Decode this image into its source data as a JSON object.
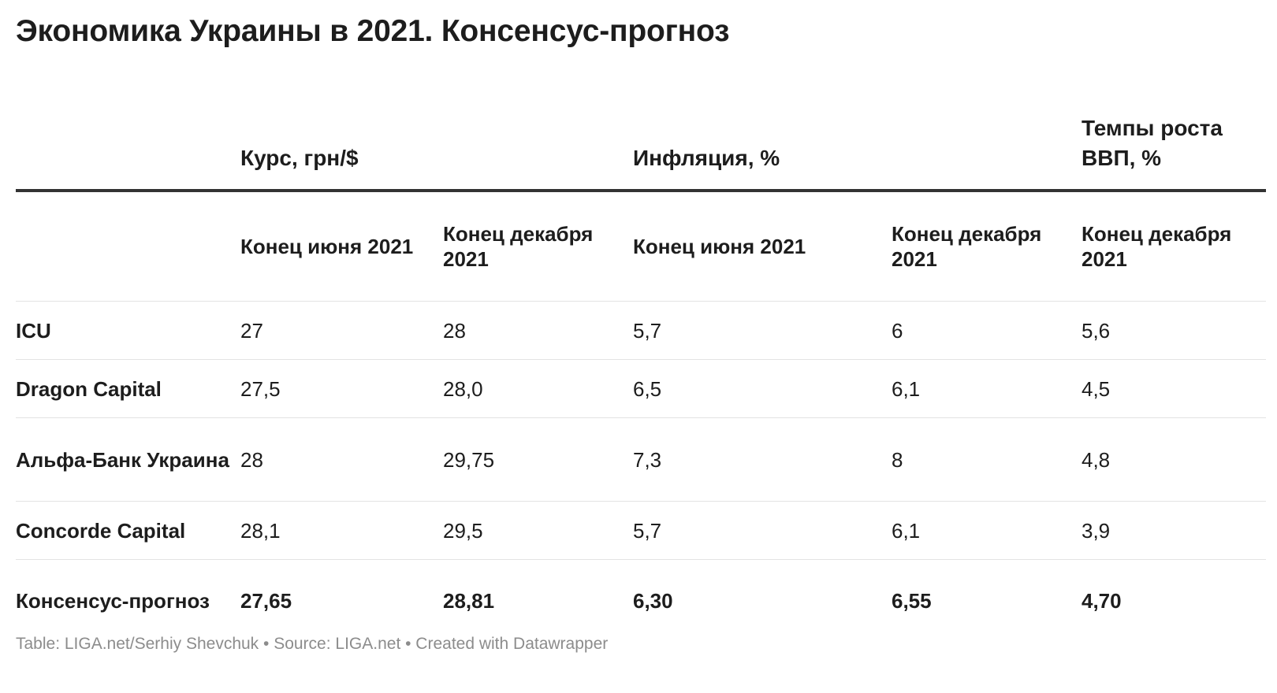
{
  "title": "Экономика Украины в 2021. Консенсус-прогноз",
  "table": {
    "groups": [
      {
        "label": "",
        "colspan": 1
      },
      {
        "label": "Курс, грн/$",
        "colspan": 2
      },
      {
        "label": "Инфляция, %",
        "colspan": 2
      },
      {
        "label": "Темпы роста ВВП, %",
        "colspan": 1
      }
    ],
    "columns": [
      "",
      "Конец июня 2021",
      "Конец декабря 2021",
      "Конец июня 2021",
      "Конец декабря 2021",
      "Конец декабря 2021"
    ],
    "rows": [
      [
        "ICU",
        "27",
        "28",
        "5,7",
        "6",
        "5,6"
      ],
      [
        "Dragon Capital",
        "27,5",
        "28,0",
        "6,5",
        "6,1",
        "4,5"
      ],
      [
        "Альфа-Банк Украина",
        "28",
        "29,75",
        "7,3",
        "8",
        "4,8"
      ],
      [
        "Concorde Capital",
        "28,1",
        "29,5",
        "5,7",
        "6,1",
        "3,9"
      ]
    ],
    "total": [
      "Консенсус-прогноз",
      "27,65",
      "28,81",
      "6,30",
      "6,55",
      "4,70"
    ]
  },
  "footer": "Table: LIGA.net/Serhiy Shevchuk • Source: LIGA.net • Created with Datawrapper",
  "chart_data": {
    "type": "table",
    "title": "Экономика Украины в 2021. Консенсус-прогноз",
    "column_groups": [
      "Курс, грн/$",
      "Инфляция, %",
      "Темпы роста ВВП, %"
    ],
    "columns": [
      "Конец июня 2021",
      "Конец декабря 2021",
      "Конец июня 2021",
      "Конец декабря 2021",
      "Конец декабря 2021"
    ],
    "series": [
      {
        "name": "ICU",
        "values": [
          27,
          28,
          5.7,
          6,
          5.6
        ]
      },
      {
        "name": "Dragon Capital",
        "values": [
          27.5,
          28.0,
          6.5,
          6.1,
          4.5
        ]
      },
      {
        "name": "Альфа-Банк Украина",
        "values": [
          28,
          29.75,
          7.3,
          8,
          4.8
        ]
      },
      {
        "name": "Concorde Capital",
        "values": [
          28.1,
          29.5,
          5.7,
          6.1,
          3.9
        ]
      },
      {
        "name": "Консенсус-прогноз",
        "values": [
          27.65,
          28.81,
          6.3,
          6.55,
          4.7
        ]
      }
    ]
  }
}
